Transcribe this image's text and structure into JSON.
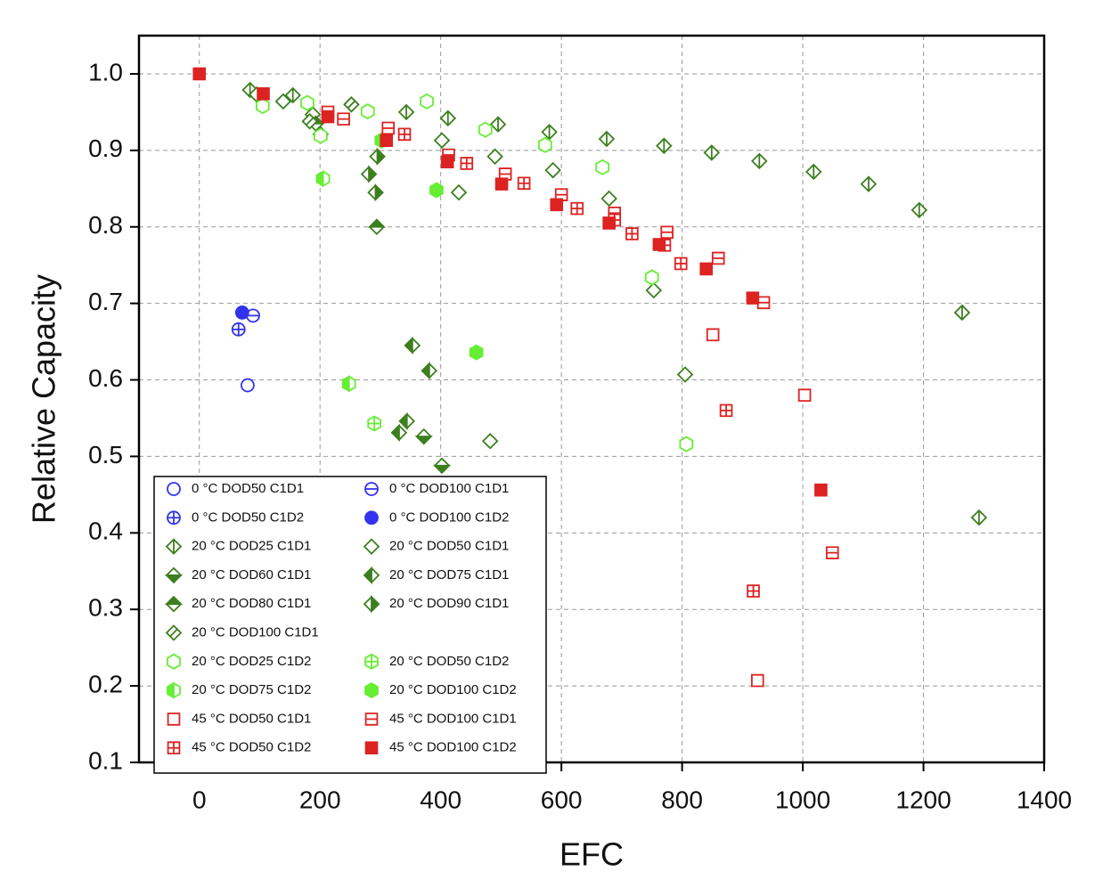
{
  "chart_data": {
    "type": "scatter",
    "x_label": "EFC",
    "y_label": "Relative Capacity",
    "xlim": [
      -100,
      1400
    ],
    "ylim": [
      0.1,
      1.05
    ],
    "xticks": [
      0,
      200,
      400,
      600,
      800,
      1000,
      1200,
      1400
    ],
    "yticks": [
      0.1,
      0.2,
      0.3,
      0.4,
      0.5,
      0.6,
      0.7,
      0.8,
      0.9,
      {
        "value": 1,
        "label": "1.0"
      }
    ],
    "grid": true,
    "legend": "lower left",
    "series": [
      {
        "name": "0 °C DOD50 C1D1",
        "color": "#3333ee",
        "marker": "circle",
        "fill": "none",
        "x": [
          80
        ],
        "values": [
          0.593
        ]
      },
      {
        "name": "0 °C DOD100 C1D1",
        "color": "#3333ee",
        "marker": "circle",
        "fill": "hline",
        "x": [
          89
        ],
        "values": [
          0.684
        ]
      },
      {
        "name": "0 °C DOD50 C1D2",
        "color": "#3333ee",
        "marker": "circle",
        "fill": "cross",
        "x": [
          65
        ],
        "values": [
          0.666
        ]
      },
      {
        "name": "0 °C DOD100 C1D2",
        "color": "#3333ee",
        "marker": "circle",
        "fill": "full",
        "x": [
          71
        ],
        "values": [
          0.688
        ]
      },
      {
        "name": "20 °C DOD25 C1D1",
        "color": "#3d7f1f",
        "marker": "diamond",
        "fill": "vline",
        "x": [
          84,
          155,
          343,
          412,
          495,
          580,
          675,
          770,
          849,
          928,
          1018,
          1109,
          1193,
          1264,
          1292
        ],
        "values": [
          0.979,
          0.972,
          0.95,
          0.942,
          0.934,
          0.924,
          0.915,
          0.906,
          0.897,
          0.886,
          0.872,
          0.856,
          0.822,
          0.688,
          0.42
        ]
      },
      {
        "name": "20 °C DOD50 C1D1",
        "color": "#3d7f1f",
        "marker": "diamond",
        "fill": "none",
        "x": [
          95,
          139,
          188,
          402,
          430,
          490,
          586,
          679,
          753,
          805,
          482
        ],
        "values": [
          0.973,
          0.964,
          0.947,
          0.913,
          0.845,
          0.892,
          0.874,
          0.837,
          0.717,
          0.607,
          0.52
        ]
      },
      {
        "name": "20 °C DOD60 C1D1",
        "color": "#3d7f1f",
        "marker": "diamond",
        "fill": "bottom",
        "x": [
          372,
          402
        ],
        "values": [
          0.526,
          0.488
        ]
      },
      {
        "name": "20 °C DOD75 C1D1",
        "color": "#3d7f1f",
        "marker": "diamond",
        "fill": "left",
        "x": [
          353,
          381,
          344,
          331
        ],
        "values": [
          0.645,
          0.612,
          0.546,
          0.531
        ]
      },
      {
        "name": "20 °C DOD80 C1D1",
        "color": "#3d7f1f",
        "marker": "diamond",
        "fill": "top",
        "x": [
          193,
          294
        ],
        "values": [
          0.935,
          0.8
        ]
      },
      {
        "name": "20 °C DOD90 C1D1",
        "color": "#3d7f1f",
        "marker": "diamond",
        "fill": "right",
        "x": [
          281,
          292,
          295
        ],
        "values": [
          0.869,
          0.845,
          0.892
        ]
      },
      {
        "name": "20 °C DOD100 C1D1",
        "color": "#3d7f1f",
        "marker": "diamond",
        "fill": "diag",
        "x": [
          183,
          201,
          252
        ],
        "values": [
          0.938,
          0.921,
          0.96
        ]
      },
      {
        "name": "20 °C DOD25 C1D2",
        "color": "#66ee33",
        "marker": "hexagon",
        "fill": "none",
        "x": [
          105,
          179,
          201,
          279,
          377,
          474,
          573,
          668,
          750,
          807
        ],
        "values": [
          0.958,
          0.962,
          0.919,
          0.951,
          0.964,
          0.927,
          0.907,
          0.878,
          0.734,
          0.516
        ]
      },
      {
        "name": "20 °C DOD50 C1D2",
        "color": "#66ee33",
        "marker": "hexagon",
        "fill": "cross",
        "x": [
          290
        ],
        "values": [
          0.543
        ]
      },
      {
        "name": "20 °C DOD75 C1D2",
        "color": "#66ee33",
        "marker": "hexagon",
        "fill": "left",
        "x": [
          205,
          248,
          302
        ],
        "values": [
          0.863,
          0.595,
          0.913
        ]
      },
      {
        "name": "20 °C DOD100 C1D2",
        "color": "#66ee33",
        "marker": "hexagon",
        "fill": "full",
        "x": [
          393,
          459
        ],
        "values": [
          0.848,
          0.636
        ]
      },
      {
        "name": "45 °C DOD50 C1D1",
        "color": "#dd2222",
        "marker": "square",
        "fill": "none",
        "x": [
          851,
          1003,
          925
        ],
        "values": [
          0.659,
          0.58,
          0.207
        ]
      },
      {
        "name": "45 °C DOD100 C1D1",
        "color": "#dd2222",
        "marker": "square",
        "fill": "hline",
        "x": [
          213,
          239,
          313,
          413,
          507,
          600,
          688,
          771,
          775,
          860,
          935,
          1049
        ],
        "values": [
          0.95,
          0.941,
          0.929,
          0.894,
          0.869,
          0.842,
          0.818,
          0.776,
          0.793,
          0.759,
          0.701,
          0.374
        ]
      },
      {
        "name": "45 °C DOD50 C1D2",
        "color": "#dd2222",
        "marker": "square",
        "fill": "cross",
        "x": [
          340,
          443,
          538,
          626,
          688,
          717,
          798,
          873,
          918
        ],
        "values": [
          0.921,
          0.883,
          0.857,
          0.824,
          0.809,
          0.791,
          0.752,
          0.56,
          0.324
        ]
      },
      {
        "name": "45 °C DOD100 C1D2",
        "color": "#dd2222",
        "marker": "square",
        "fill": "full",
        "x": [
          0,
          106,
          213,
          310,
          411,
          501,
          592,
          679,
          762,
          840,
          917,
          1030
        ],
        "values": [
          1,
          0.974,
          0.944,
          0.913,
          0.885,
          0.856,
          0.829,
          0.805,
          0.777,
          0.745,
          0.707,
          0.456
        ]
      }
    ]
  }
}
